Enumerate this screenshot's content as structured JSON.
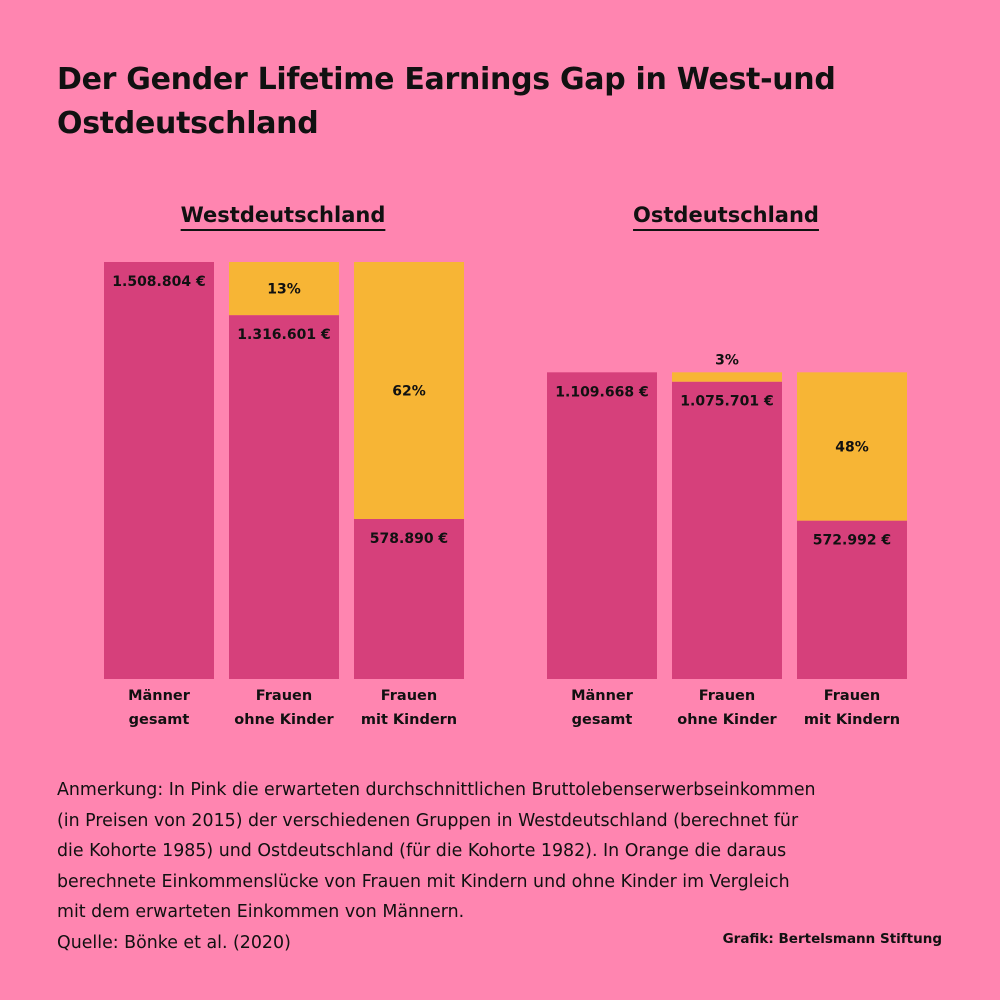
{
  "title": "Der Gender Lifetime Earnings Gap in West-und Ostdeutschland",
  "colors": {
    "background": "#ff85b0",
    "earnings": "#d6407b",
    "gap": "#f7b535",
    "text": "#111111"
  },
  "chart_data": [
    {
      "type": "bar",
      "stacked": true,
      "title": "Westdeutschland",
      "categories": [
        [
          "Männer",
          "gesamt"
        ],
        [
          "Frauen",
          "ohne Kinder"
        ],
        [
          "Frauen",
          "mit Kindern"
        ]
      ],
      "series": [
        {
          "color": "#d6407b",
          "values": [
            1508804,
            1316601,
            578890
          ],
          "labels": [
            "1.508.804 €",
            "1.316.601 €",
            "578.890 €"
          ]
        },
        {
          "color": "#f7b535",
          "values": [
            0,
            192203,
            929914
          ],
          "labels": [
            "",
            "13%",
            "62%"
          ]
        }
      ],
      "ylim": [
        0,
        1508804
      ]
    },
    {
      "type": "bar",
      "stacked": true,
      "title": "Ostdeutschland",
      "categories": [
        [
          "Männer",
          "gesamt"
        ],
        [
          "Frauen",
          "ohne Kinder"
        ],
        [
          "Frauen",
          "mit Kindern"
        ]
      ],
      "series": [
        {
          "color": "#d6407b",
          "values": [
            1109668,
            1075701,
            572992
          ],
          "labels": [
            "1.109.668 €",
            "1.075.701 €",
            "572.992 €"
          ]
        },
        {
          "color": "#f7b535",
          "values": [
            0,
            33967,
            536676
          ],
          "labels": [
            "",
            "3%",
            "48%"
          ]
        }
      ],
      "ylim": [
        0,
        1508804
      ]
    }
  ],
  "note_lines": [
    "Anmerkung: In Pink die erwarteten durchschnittlichen Bruttolebenserwerbseinkommen",
    "(in Preisen von 2015) der verschiedenen Gruppen in Westdeutschland (berechnet für",
    "die Kohorte 1985) und Ostdeutschland (für die Kohorte 1982). In Orange die daraus",
    "berechnete Einkommenslücke von Frauen mit Kindern und ohne Kinder im Vergleich",
    "mit dem erwarteten Einkommen von Männern.",
    "Quelle: Bönke et al. (2020)"
  ],
  "credit": "Grafik: Bertelsmann Stiftung"
}
